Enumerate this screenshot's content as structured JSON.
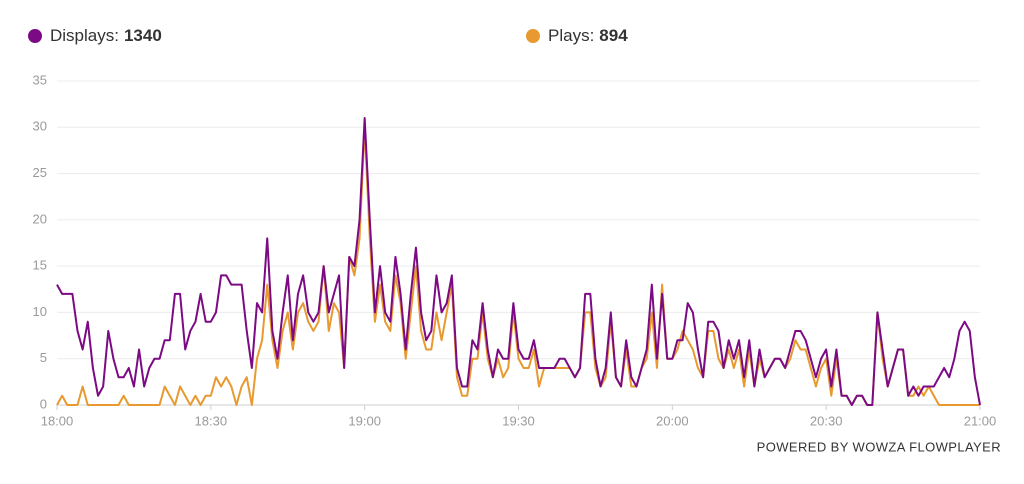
{
  "chart_data": {
    "type": "line",
    "xlim": [
      0,
      180
    ],
    "xticks": [
      {
        "value": 0,
        "label": "18:00"
      },
      {
        "value": 30,
        "label": "18:30"
      },
      {
        "value": 60,
        "label": "19:00"
      },
      {
        "value": 90,
        "label": "19:30"
      },
      {
        "value": 120,
        "label": "20:00"
      },
      {
        "value": 150,
        "label": "20:30"
      },
      {
        "value": 180,
        "label": "21:00"
      }
    ],
    "ylim": [
      0,
      35
    ],
    "yticks": [
      0,
      5,
      10,
      15,
      20,
      25,
      30,
      35
    ],
    "grid": true,
    "x": [
      0,
      1,
      2,
      3,
      4,
      5,
      6,
      7,
      8,
      9,
      10,
      11,
      12,
      13,
      14,
      15,
      16,
      17,
      18,
      19,
      20,
      21,
      22,
      23,
      24,
      25,
      26,
      27,
      28,
      29,
      30,
      31,
      32,
      33,
      34,
      35,
      36,
      37,
      38,
      39,
      40,
      41,
      42,
      43,
      44,
      45,
      46,
      47,
      48,
      49,
      50,
      51,
      52,
      53,
      54,
      55,
      56,
      57,
      58,
      59,
      60,
      61,
      62,
      63,
      64,
      65,
      66,
      67,
      68,
      69,
      70,
      71,
      72,
      73,
      74,
      75,
      76,
      77,
      78,
      79,
      80,
      81,
      82,
      83,
      84,
      85,
      86,
      87,
      88,
      89,
      90,
      91,
      92,
      93,
      94,
      95,
      96,
      97,
      98,
      99,
      100,
      101,
      102,
      103,
      104,
      105,
      106,
      107,
      108,
      109,
      110,
      111,
      112,
      113,
      114,
      115,
      116,
      117,
      118,
      119,
      120,
      121,
      122,
      123,
      124,
      125,
      126,
      127,
      128,
      129,
      130,
      131,
      132,
      133,
      134,
      135,
      136,
      137,
      138,
      139,
      140,
      141,
      142,
      143,
      144,
      145,
      146,
      147,
      148,
      149,
      150,
      151,
      152,
      153,
      154,
      155,
      156,
      157,
      158,
      159,
      160,
      161,
      162,
      163,
      164,
      165,
      166,
      167,
      168,
      169,
      170,
      171,
      172,
      173,
      174,
      175,
      176,
      177,
      178,
      179,
      180
    ],
    "series": [
      {
        "name": "Displays:",
        "total": 1340,
        "color": "#7b0a84",
        "values": [
          13,
          12,
          12,
          12,
          8,
          6,
          9,
          4,
          1,
          2,
          8,
          5,
          3,
          3,
          4,
          2,
          6,
          2,
          4,
          5,
          5,
          7,
          7,
          12,
          12,
          6,
          8,
          9,
          12,
          9,
          9,
          10,
          14,
          14,
          13,
          13,
          13,
          8,
          4,
          11,
          10,
          18,
          8,
          5,
          10,
          14,
          7,
          12,
          14,
          10,
          9,
          10,
          15,
          10,
          12,
          14,
          4,
          16,
          15,
          20,
          31,
          20,
          10,
          15,
          10,
          9,
          16,
          12,
          6,
          12,
          17,
          10,
          7,
          8,
          14,
          10,
          11,
          14,
          4,
          2,
          2,
          7,
          6,
          11,
          6,
          3,
          6,
          5,
          5,
          11,
          6,
          5,
          5,
          7,
          4,
          4,
          4,
          4,
          5,
          5,
          4,
          3,
          4,
          12,
          12,
          5,
          2,
          4,
          10,
          3,
          2,
          7,
          3,
          2,
          4,
          6,
          13,
          5,
          12,
          5,
          5,
          7,
          7,
          11,
          10,
          6,
          3,
          9,
          9,
          8,
          4,
          7,
          5,
          7,
          3,
          7,
          2,
          6,
          3,
          4,
          5,
          5,
          4,
          6,
          8,
          8,
          7,
          5,
          3,
          5,
          6,
          2,
          6,
          1,
          1,
          0,
          1,
          1,
          0,
          0,
          10,
          6,
          2,
          4,
          6,
          6,
          1,
          2,
          1,
          2,
          2,
          2,
          3,
          4,
          3,
          5,
          8,
          9,
          8,
          3,
          0
        ]
      },
      {
        "name": "Plays:",
        "total": 894,
        "color": "#e8992f",
        "values": [
          0,
          1,
          0,
          0,
          0,
          2,
          0,
          0,
          0,
          0,
          0,
          0,
          0,
          1,
          0,
          0,
          0,
          0,
          0,
          0,
          0,
          2,
          1,
          0,
          2,
          1,
          0,
          1,
          0,
          1,
          1,
          3,
          2,
          3,
          2,
          0,
          2,
          3,
          0,
          5,
          7,
          13,
          7,
          4,
          8,
          10,
          6,
          10,
          11,
          9,
          8,
          9,
          15,
          8,
          11,
          10,
          4,
          16,
          14,
          18,
          30,
          18,
          9,
          13,
          9,
          8,
          14,
          11,
          5,
          10,
          15,
          8,
          6,
          6,
          10,
          7,
          10,
          13,
          3,
          1,
          1,
          5,
          5,
          10,
          5,
          3,
          5,
          3,
          4,
          10,
          5,
          4,
          4,
          6,
          2,
          4,
          4,
          4,
          4,
          4,
          4,
          3,
          4,
          10,
          10,
          4,
          2,
          3,
          9,
          3,
          2,
          6,
          2,
          2,
          4,
          5,
          10,
          4,
          13,
          5,
          5,
          6,
          8,
          7,
          6,
          4,
          3,
          8,
          8,
          5,
          4,
          6,
          4,
          6,
          2,
          6,
          2,
          5,
          3,
          4,
          5,
          5,
          4,
          5,
          7,
          6,
          6,
          4,
          2,
          4,
          5,
          1,
          5,
          1,
          1,
          0,
          1,
          1,
          0,
          0,
          10,
          5,
          2,
          4,
          6,
          6,
          1,
          1,
          2,
          1,
          2,
          1,
          0,
          0,
          0,
          0,
          0,
          0,
          0,
          0,
          0
        ]
      }
    ],
    "footer": "POWERED BY WOWZA FLOWPLAYER"
  }
}
